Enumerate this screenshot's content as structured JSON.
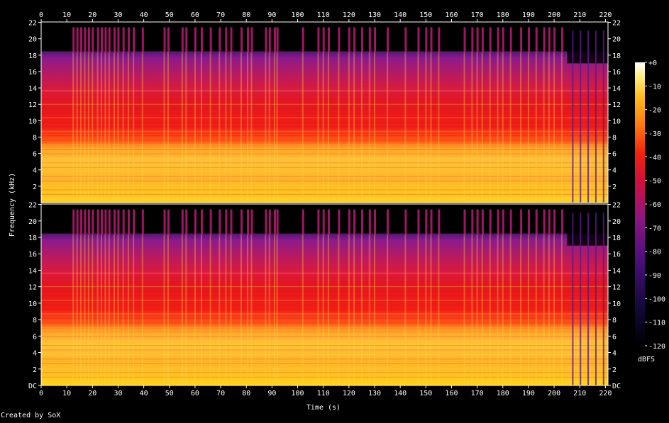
{
  "chart_data": {
    "type": "heatmap",
    "title": "",
    "xlabel": "Time (s)",
    "ylabel": "Frequency (kHz)",
    "x_ticks": [
      0,
      10,
      20,
      30,
      40,
      50,
      60,
      70,
      80,
      90,
      100,
      110,
      120,
      130,
      140,
      150,
      160,
      170,
      180,
      190,
      200,
      210,
      220
    ],
    "xlim": [
      0,
      221
    ],
    "channels": [
      {
        "name": "upper-channel",
        "y_ticks": [
          "2",
          "4",
          "6",
          "8",
          "10",
          "12",
          "14",
          "16",
          "18",
          "20",
          "22"
        ]
      },
      {
        "name": "lower-channel",
        "y_ticks": [
          "DC",
          "2",
          "4",
          "6",
          "8",
          "10",
          "12",
          "14",
          "16",
          "18",
          "20",
          "22"
        ]
      }
    ],
    "ylim_khz": [
      0,
      22.05
    ],
    "colorbar": {
      "label": "dBFS",
      "ticks": [
        "+0",
        "-10",
        "-20",
        "-30",
        "-40",
        "-50",
        "-60",
        "-70",
        "-80",
        "-90",
        "-100",
        "-110",
        "-120"
      ],
      "range": [
        -120,
        0
      ]
    },
    "typical_bandwidth_khz": 18.3,
    "transient_times_s": [
      12.5,
      14,
      15.5,
      17,
      18.5,
      20,
      22,
      23.5,
      25,
      26.5,
      28.5,
      30,
      32,
      34,
      36,
      39.5,
      48,
      49.5,
      55,
      56.5,
      60,
      62.5,
      66,
      69.5,
      72,
      74,
      78,
      80.5,
      82,
      87.5,
      89,
      91,
      92,
      102,
      108,
      110,
      112,
      116,
      120,
      122,
      125,
      128,
      130,
      135,
      142,
      147,
      150,
      152,
      155,
      165,
      168,
      170,
      172,
      175,
      178,
      180,
      183,
      187,
      190,
      193,
      196,
      198,
      200,
      203
    ],
    "fadeout_start_s": 205
  },
  "footer": {
    "credit": "Created by SoX"
  },
  "colors": {
    "background": "#000000",
    "text": "#ffffff"
  }
}
